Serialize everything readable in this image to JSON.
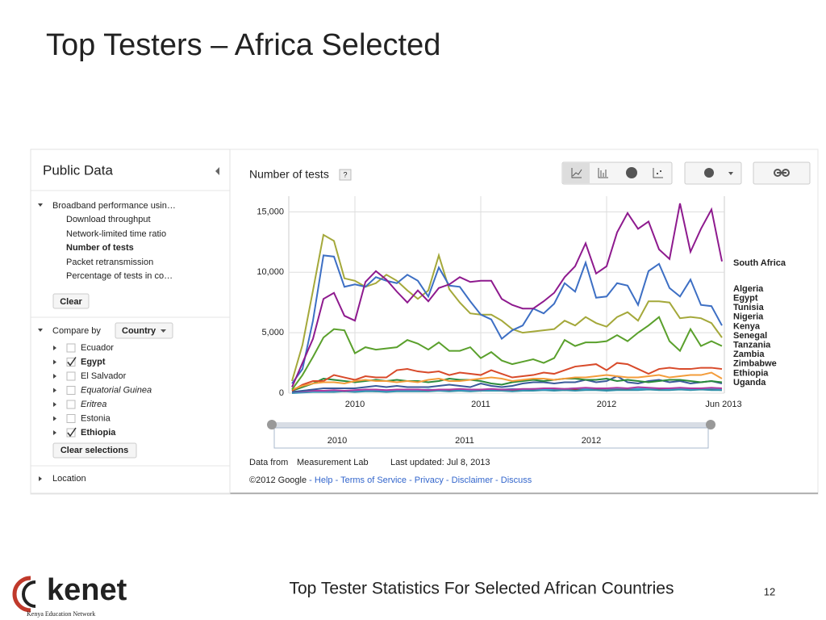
{
  "slide_title": "Top Testers – Africa Selected",
  "panel": {
    "title": "Public Data",
    "dataset": "Broadband performance usin…",
    "metrics": [
      "Download throughput",
      "Network-limited time ratio",
      "Number of tests",
      "Packet retransmission",
      "Percentage of tests in co…"
    ],
    "clear": "Clear",
    "compare_by": "Compare by",
    "compare_choice": "Country",
    "countries": [
      "Ecuador",
      "Egypt",
      "El Salvador",
      "Equatorial Guinea",
      "Eritrea",
      "Estonia",
      "Ethiopia"
    ],
    "clear_selections": "Clear selections",
    "location": "Location"
  },
  "chart_data": {
    "type": "line",
    "y_label": "Number of tests",
    "help": "?",
    "categories": [
      null,
      null,
      null,
      null,
      null,
      null,
      "2010",
      null,
      null,
      null,
      null,
      null,
      null,
      null,
      null,
      null,
      null,
      null,
      "2011",
      null,
      null,
      null,
      null,
      null,
      null,
      null,
      null,
      null,
      null,
      null,
      "2012",
      null,
      null,
      null,
      null,
      null,
      null,
      null,
      null,
      null,
      null,
      "Jun 2013"
    ],
    "ylim": [
      0,
      16300
    ],
    "yticks": [
      0,
      {
        "value": 5000,
        "label": "5,000"
      },
      {
        "value": 10000,
        "label": "10,000"
      },
      {
        "value": 15000,
        "label": "15,000"
      }
    ],
    "grid": true,
    "series": [
      {
        "name": "South Africa",
        "color": "#8e1a8e",
        "values": [
          500,
          2500,
          4500,
          7800,
          8300,
          6400,
          6000,
          9200,
          10100,
          9400,
          8400,
          7500,
          8500,
          7600,
          8700,
          9000,
          9600,
          9200,
          9300,
          9300,
          7800,
          7300,
          7000,
          7000,
          7600,
          8300,
          9600,
          10500,
          12400,
          9900,
          10500,
          13300,
          14900,
          13600,
          14200,
          11900,
          11100,
          15700,
          11700,
          13600,
          15200,
          10900
        ]
      },
      {
        "name": "Algeria",
        "color": "#3d6fc4",
        "values": [
          800,
          2000,
          6000,
          11400,
          11300,
          8800,
          9000,
          8800,
          9600,
          9300,
          9100,
          9800,
          9300,
          8000,
          10400,
          8900,
          8800,
          7600,
          6500,
          6100,
          4500,
          5200,
          5600,
          7000,
          6600,
          7400,
          9100,
          8400,
          10800,
          7900,
          8000,
          9100,
          8900,
          7300,
          10100,
          10700,
          8700,
          8000,
          9400,
          7300,
          7200,
          5600
        ]
      },
      {
        "name": "Egypt",
        "color": "#a4a83a",
        "values": [
          1000,
          4000,
          8500,
          13100,
          12600,
          9500,
          9300,
          8800,
          9100,
          9800,
          9300,
          8500,
          7800,
          8500,
          11400,
          8600,
          7500,
          6600,
          6500,
          6500,
          6000,
          5300,
          5000,
          5100,
          5200,
          5300,
          6000,
          5600,
          6300,
          5800,
          5500,
          6300,
          6700,
          6000,
          7600,
          7600,
          7500,
          6200,
          6300,
          6200,
          5800,
          4600
        ]
      },
      {
        "name": "Tunisia",
        "color": "#5aa02c",
        "values": [
          300,
          1500,
          3000,
          4600,
          5300,
          5200,
          3300,
          3800,
          3600,
          3700,
          3800,
          4400,
          4100,
          3600,
          4200,
          3500,
          3500,
          3800,
          2900,
          3400,
          2700,
          2400,
          2600,
          2800,
          2500,
          2900,
          4400,
          3900,
          4200,
          4200,
          4300,
          4800,
          4300,
          5000,
          5600,
          6300,
          4300,
          3500,
          5300,
          3900,
          4300,
          3900
        ]
      },
      {
        "name": "Nigeria",
        "color": "#f39c3a",
        "values": [
          300,
          600,
          800,
          900,
          900,
          800,
          1000,
          1100,
          1000,
          1000,
          900,
          1000,
          900,
          1100,
          1200,
          1000,
          1000,
          1100,
          1200,
          1300,
          1200,
          1000,
          1100,
          1200,
          1200,
          1100,
          1200,
          1300,
          1300,
          1400,
          1500,
          1400,
          1300,
          1300,
          1400,
          1500,
          1300,
          1400,
          1500,
          1500,
          1700,
          1200
        ]
      },
      {
        "name": "Kenya",
        "color": "#d84a2a",
        "values": [
          200,
          700,
          1000,
          1000,
          1500,
          1300,
          1100,
          1400,
          1300,
          1300,
          1900,
          2000,
          1800,
          1700,
          1800,
          1500,
          1700,
          1600,
          1500,
          1900,
          1600,
          1300,
          1400,
          1500,
          1700,
          1600,
          1900,
          2200,
          2300,
          2400,
          1900,
          2500,
          2400,
          2000,
          1600,
          2000,
          2100,
          2000,
          2000,
          2100,
          2100,
          2000
        ]
      },
      {
        "name": "Senegal",
        "color": "#2a8a3a",
        "values": [
          200,
          500,
          800,
          1200,
          1100,
          1000,
          900,
          1000,
          1100,
          1000,
          1100,
          1000,
          1000,
          900,
          1000,
          1200,
          1100,
          1100,
          1000,
          800,
          700,
          900,
          1000,
          1100,
          1000,
          1100,
          1200,
          1200,
          1100,
          1100,
          1200,
          1000,
          1100,
          1000,
          900,
          1000,
          1100,
          1100,
          1000,
          900,
          1000,
          900
        ]
      },
      {
        "name": "Tanzania",
        "color": "#3a5a9a",
        "values": [
          100,
          200,
          300,
          400,
          400,
          400,
          400,
          500,
          600,
          500,
          600,
          500,
          500,
          500,
          600,
          700,
          600,
          500,
          800,
          600,
          500,
          600,
          800,
          900,
          900,
          800,
          900,
          900,
          1100,
          900,
          1000,
          1400,
          900,
          800,
          1000,
          1100,
          900,
          1000,
          800,
          900,
          1000,
          800
        ]
      },
      {
        "name": "Zambia",
        "color": "#b03aa0",
        "values": [
          100,
          150,
          200,
          200,
          250,
          200,
          250,
          300,
          300,
          250,
          300,
          300,
          300,
          250,
          300,
          300,
          350,
          300,
          300,
          350,
          300,
          300,
          350,
          350,
          400,
          400,
          350,
          400,
          450,
          400,
          400,
          450,
          400,
          500,
          450,
          400,
          400,
          450,
          400,
          400,
          450,
          400
        ]
      },
      {
        "name": "Zimbabwe",
        "color": "#3aa0d0",
        "values": [
          50,
          100,
          150,
          150,
          200,
          200,
          200,
          250,
          250,
          200,
          250,
          250,
          250,
          300,
          250,
          300,
          300,
          250,
          300,
          300,
          300,
          350,
          300,
          350,
          300,
          350,
          350,
          400,
          350,
          400,
          350,
          400,
          400,
          350,
          400,
          400,
          350,
          400,
          350,
          400,
          400,
          350
        ]
      },
      {
        "name": "Ethiopia",
        "color": "#2f8fa8",
        "values": [
          0,
          50,
          100,
          100,
          100,
          150,
          100,
          150,
          150,
          100,
          150,
          150,
          150,
          150,
          200,
          150,
          200,
          150,
          200,
          200,
          200,
          150,
          200,
          200,
          250,
          200,
          250,
          200,
          250,
          250,
          200,
          250,
          250,
          250,
          300,
          250,
          250,
          300,
          250,
          300,
          250,
          250
        ]
      },
      {
        "name": "Uganda",
        "color": "#a02a2a",
        "values": [
          50,
          100,
          150,
          150,
          200,
          150,
          200,
          200,
          150,
          200,
          200,
          250,
          200,
          250,
          200,
          250,
          250,
          200,
          250,
          250,
          300,
          250,
          300,
          250,
          300,
          300,
          250,
          300,
          300,
          350,
          300,
          300,
          350,
          300,
          300,
          350,
          300,
          300,
          350,
          300,
          300,
          250
        ]
      }
    ]
  },
  "timeline_labels": [
    "2010",
    "2011",
    "2012"
  ],
  "source": {
    "prefix": "Data from",
    "link": "Measurement Lab",
    "updated": "Last updated: Jul 8, 2013"
  },
  "legal": {
    "copyright": "©2012 Google",
    "separator": " - ",
    "links": [
      "Help",
      "Terms of Service",
      "Privacy",
      "Disclaimer",
      "Discuss"
    ]
  },
  "footer": {
    "caption": "Top Tester Statistics For Selected African Countries",
    "page": "12",
    "logo": "kenet",
    "logo_sub": "Kenya Education Network"
  }
}
